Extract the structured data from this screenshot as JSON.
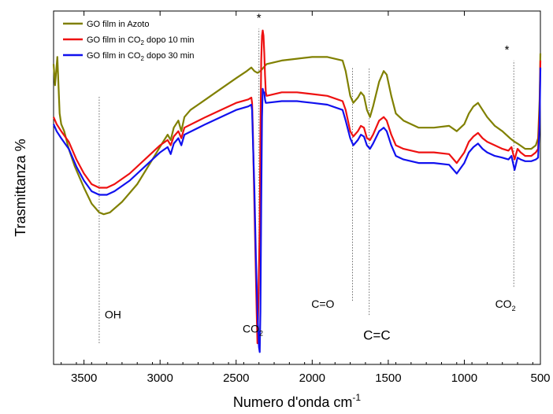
{
  "chart_data": {
    "type": "line",
    "title": "",
    "xlabel": "Numero d'onda cm",
    "xlabel_sup": "-1",
    "ylabel": "Trasmittanza %",
    "xlim": [
      3700,
      500
    ],
    "x_reversed": true,
    "ylim": [
      0,
      100
    ],
    "y_ticks_labeled": false,
    "grid": false,
    "legend_position": "top-left",
    "x_ticks": [
      3500,
      3000,
      2500,
      2000,
      1500,
      1000,
      500
    ],
    "x_tick_labels": [
      "3500",
      "3000",
      "2500",
      "2000",
      "1500",
      "1000",
      "500"
    ],
    "series": [
      {
        "name": "GO film in Azoto",
        "legend_text": [
          "GO film in Azoto"
        ],
        "color": "#808000",
        "points": [
          [
            3700,
            85
          ],
          [
            3690,
            79
          ],
          [
            3675,
            87
          ],
          [
            3660,
            71
          ],
          [
            3650,
            68
          ],
          [
            3630,
            66
          ],
          [
            3600,
            61
          ],
          [
            3560,
            56
          ],
          [
            3500,
            50
          ],
          [
            3450,
            45.5
          ],
          [
            3400,
            43
          ],
          [
            3370,
            42.5
          ],
          [
            3330,
            43
          ],
          [
            3250,
            46
          ],
          [
            3150,
            51
          ],
          [
            3050,
            58
          ],
          [
            2980,
            63
          ],
          [
            2950,
            65
          ],
          [
            2930,
            63.5
          ],
          [
            2910,
            67
          ],
          [
            2880,
            69
          ],
          [
            2860,
            66
          ],
          [
            2840,
            70
          ],
          [
            2800,
            72
          ],
          [
            2700,
            75
          ],
          [
            2600,
            78
          ],
          [
            2500,
            81
          ],
          [
            2430,
            83
          ],
          [
            2400,
            84
          ],
          [
            2380,
            83
          ],
          [
            2360,
            82.5
          ],
          [
            2340,
            83
          ],
          [
            2320,
            84
          ],
          [
            2300,
            85
          ],
          [
            2200,
            86
          ],
          [
            2100,
            86.5
          ],
          [
            2000,
            87
          ],
          [
            1900,
            87
          ],
          [
            1800,
            86
          ],
          [
            1780,
            83
          ],
          [
            1750,
            76
          ],
          [
            1730,
            74
          ],
          [
            1700,
            75.5
          ],
          [
            1680,
            77
          ],
          [
            1660,
            76
          ],
          [
            1640,
            72
          ],
          [
            1620,
            70
          ],
          [
            1600,
            73
          ],
          [
            1560,
            80
          ],
          [
            1530,
            83
          ],
          [
            1510,
            82
          ],
          [
            1480,
            76
          ],
          [
            1450,
            71
          ],
          [
            1400,
            69
          ],
          [
            1300,
            67
          ],
          [
            1200,
            67
          ],
          [
            1100,
            67.5
          ],
          [
            1050,
            66
          ],
          [
            1000,
            68
          ],
          [
            970,
            71
          ],
          [
            940,
            73
          ],
          [
            910,
            74
          ],
          [
            880,
            72
          ],
          [
            850,
            70
          ],
          [
            800,
            67.5
          ],
          [
            750,
            66
          ],
          [
            700,
            64
          ],
          [
            670,
            63
          ],
          [
            650,
            62.5
          ],
          [
            600,
            61
          ],
          [
            560,
            61
          ],
          [
            530,
            62
          ],
          [
            515,
            64
          ],
          [
            505,
            75
          ],
          [
            500,
            88
          ]
        ]
      },
      {
        "name": "GO film in CO2 dopo 10 min",
        "legend_text": [
          "GO film in CO",
          "2",
          " dopo 10 min"
        ],
        "color": "#ee1111",
        "points": [
          [
            3700,
            70
          ],
          [
            3680,
            68
          ],
          [
            3650,
            66
          ],
          [
            3600,
            63
          ],
          [
            3550,
            58
          ],
          [
            3500,
            54
          ],
          [
            3450,
            51
          ],
          [
            3400,
            50
          ],
          [
            3350,
            50
          ],
          [
            3300,
            51
          ],
          [
            3200,
            54
          ],
          [
            3100,
            58
          ],
          [
            3000,
            62
          ],
          [
            2950,
            63.5
          ],
          [
            2930,
            62
          ],
          [
            2910,
            64.5
          ],
          [
            2880,
            66
          ],
          [
            2860,
            64
          ],
          [
            2840,
            67
          ],
          [
            2700,
            70
          ],
          [
            2600,
            72
          ],
          [
            2500,
            74
          ],
          [
            2420,
            75
          ],
          [
            2400,
            75.5
          ],
          [
            2395,
            74
          ],
          [
            2390,
            66
          ],
          [
            2385,
            55
          ],
          [
            2375,
            35
          ],
          [
            2365,
            15
          ],
          [
            2360,
            6
          ],
          [
            2355,
            15
          ],
          [
            2345,
            40
          ],
          [
            2340,
            65
          ],
          [
            2335,
            86
          ],
          [
            2330,
            93
          ],
          [
            2325,
            94.5
          ],
          [
            2320,
            93
          ],
          [
            2315,
            88
          ],
          [
            2310,
            82
          ],
          [
            2305,
            77
          ],
          [
            2300,
            76
          ],
          [
            2200,
            77
          ],
          [
            2100,
            77
          ],
          [
            2000,
            76.5
          ],
          [
            1900,
            76
          ],
          [
            1800,
            74.5
          ],
          [
            1780,
            72
          ],
          [
            1750,
            66
          ],
          [
            1730,
            64.5
          ],
          [
            1700,
            66
          ],
          [
            1680,
            67.5
          ],
          [
            1660,
            67
          ],
          [
            1640,
            64
          ],
          [
            1620,
            63.5
          ],
          [
            1600,
            65
          ],
          [
            1560,
            69
          ],
          [
            1530,
            70
          ],
          [
            1510,
            69
          ],
          [
            1480,
            65
          ],
          [
            1450,
            62
          ],
          [
            1400,
            61
          ],
          [
            1300,
            60
          ],
          [
            1200,
            60
          ],
          [
            1100,
            59.5
          ],
          [
            1050,
            57
          ],
          [
            1000,
            60
          ],
          [
            970,
            63
          ],
          [
            940,
            64.5
          ],
          [
            910,
            65.5
          ],
          [
            880,
            64
          ],
          [
            850,
            63
          ],
          [
            800,
            62
          ],
          [
            750,
            61
          ],
          [
            710,
            60.5
          ],
          [
            690,
            61.5
          ],
          [
            670,
            58
          ],
          [
            650,
            61
          ],
          [
            630,
            60
          ],
          [
            600,
            59
          ],
          [
            560,
            59
          ],
          [
            530,
            60
          ],
          [
            515,
            61
          ],
          [
            505,
            72
          ],
          [
            500,
            86
          ]
        ]
      },
      {
        "name": "GO film in CO2 dopo 30 min",
        "legend_text": [
          "GO film in CO",
          "2",
          " dopo 30 min"
        ],
        "color": "#1111ee",
        "points": [
          [
            3700,
            68
          ],
          [
            3680,
            66
          ],
          [
            3650,
            64
          ],
          [
            3600,
            61
          ],
          [
            3550,
            56
          ],
          [
            3500,
            52
          ],
          [
            3450,
            49
          ],
          [
            3400,
            48
          ],
          [
            3350,
            48
          ],
          [
            3300,
            49
          ],
          [
            3200,
            52
          ],
          [
            3100,
            56
          ],
          [
            3000,
            60
          ],
          [
            2950,
            61.5
          ],
          [
            2930,
            59.5
          ],
          [
            2910,
            62.5
          ],
          [
            2880,
            64
          ],
          [
            2860,
            62
          ],
          [
            2840,
            65
          ],
          [
            2700,
            68
          ],
          [
            2600,
            70
          ],
          [
            2500,
            72
          ],
          [
            2420,
            73
          ],
          [
            2400,
            73.5
          ],
          [
            2395,
            72
          ],
          [
            2390,
            64
          ],
          [
            2380,
            50
          ],
          [
            2370,
            30
          ],
          [
            2360,
            15
          ],
          [
            2350,
            5
          ],
          [
            2345,
            3.5
          ],
          [
            2340,
            15
          ],
          [
            2335,
            45
          ],
          [
            2330,
            70
          ],
          [
            2325,
            78
          ],
          [
            2320,
            77
          ],
          [
            2315,
            77
          ],
          [
            2310,
            75
          ],
          [
            2305,
            74
          ],
          [
            2300,
            74
          ],
          [
            2200,
            74.5
          ],
          [
            2100,
            74.5
          ],
          [
            2000,
            74
          ],
          [
            1900,
            73.5
          ],
          [
            1800,
            72
          ],
          [
            1780,
            69
          ],
          [
            1750,
            64
          ],
          [
            1730,
            62
          ],
          [
            1700,
            63.5
          ],
          [
            1680,
            65
          ],
          [
            1660,
            64.5
          ],
          [
            1640,
            62
          ],
          [
            1620,
            61
          ],
          [
            1600,
            62.5
          ],
          [
            1560,
            66
          ],
          [
            1530,
            67
          ],
          [
            1510,
            66
          ],
          [
            1480,
            62
          ],
          [
            1450,
            59
          ],
          [
            1400,
            58
          ],
          [
            1300,
            57
          ],
          [
            1200,
            57
          ],
          [
            1100,
            56.5
          ],
          [
            1050,
            54
          ],
          [
            1000,
            57
          ],
          [
            970,
            60
          ],
          [
            940,
            61.5
          ],
          [
            910,
            62.5
          ],
          [
            880,
            61
          ],
          [
            850,
            60
          ],
          [
            800,
            59
          ],
          [
            750,
            58.5
          ],
          [
            710,
            58
          ],
          [
            690,
            59
          ],
          [
            670,
            55
          ],
          [
            650,
            58.5
          ],
          [
            630,
            58
          ],
          [
            600,
            57.5
          ],
          [
            560,
            57.5
          ],
          [
            530,
            58
          ],
          [
            515,
            58.5
          ],
          [
            505,
            68
          ],
          [
            500,
            84
          ]
        ]
      }
    ],
    "annotations": [
      {
        "text": "OH",
        "x": 3310,
        "y": 13
      },
      {
        "text": "CO",
        "sub": "2",
        "x": 2390,
        "y": 9
      },
      {
        "text": "C=O",
        "x": 1930,
        "y": 16
      },
      {
        "text": "C=C",
        "x": 1575,
        "y": 7
      },
      {
        "text": "CO",
        "sub": "2",
        "x": 730,
        "y": 16
      },
      {
        "text": "*",
        "x": 2350,
        "y": 97
      },
      {
        "text": "*",
        "x": 720,
        "y": 88
      }
    ],
    "reference_lines": [
      {
        "x": 3400,
        "y_from": 6,
        "y_to": 76
      },
      {
        "x": 2350,
        "y_from": 20,
        "y_to": 95
      },
      {
        "x": 1735,
        "y_from": 18,
        "y_to": 84
      },
      {
        "x": 1625,
        "y_from": 14,
        "y_to": 84
      },
      {
        "x": 675,
        "y_from": 22,
        "y_to": 86
      }
    ]
  }
}
